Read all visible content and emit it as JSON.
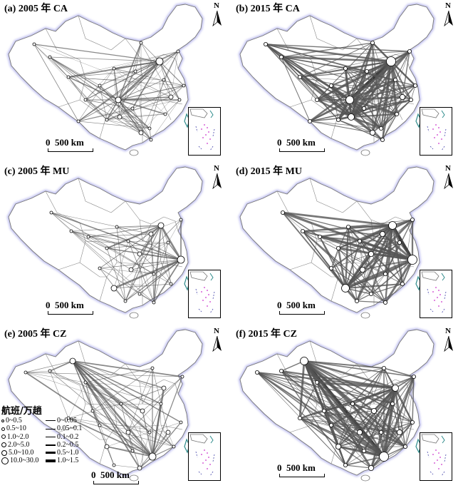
{
  "figure": {
    "panels": [
      {
        "id": "a",
        "title": "(a) 2005 年 CA",
        "airline": "CA",
        "year": "2005"
      },
      {
        "id": "b",
        "title": "(b) 2015 年 CA",
        "airline": "CA",
        "year": "2015"
      },
      {
        "id": "c",
        "title": "(c) 2005 年 MU",
        "airline": "MU",
        "year": "2005"
      },
      {
        "id": "d",
        "title": "(d) 2015 年 MU",
        "airline": "MU",
        "year": "2015"
      },
      {
        "id": "e",
        "title": "(e) 2005 年 CZ",
        "airline": "CZ",
        "year": "2005"
      },
      {
        "id": "f",
        "title": "(f) 2015 年 CZ",
        "airline": "CZ",
        "year": "2015"
      }
    ],
    "north_label": "N",
    "scale_label": "0  500 km",
    "legend": {
      "title": "航班/万趟",
      "circle_classes": [
        "0~0.5",
        "0.5~10",
        "1.0~2.0",
        "2.0~5.0",
        "5.0~10.0",
        "10.0~30.0"
      ],
      "line_classes": [
        "0~0.05",
        "0.05~0.1",
        "0.1~0.2",
        "0.2~0.5",
        "0.5~1.0",
        "1.0~1.5"
      ]
    }
  },
  "colors": {
    "route": "#555555",
    "route_heavy": "#111111",
    "boundary": "#777777",
    "coast_glow": "#b7b7ee",
    "taiwan": "#2e8b8b",
    "island_dots": "#cc33cc"
  }
}
